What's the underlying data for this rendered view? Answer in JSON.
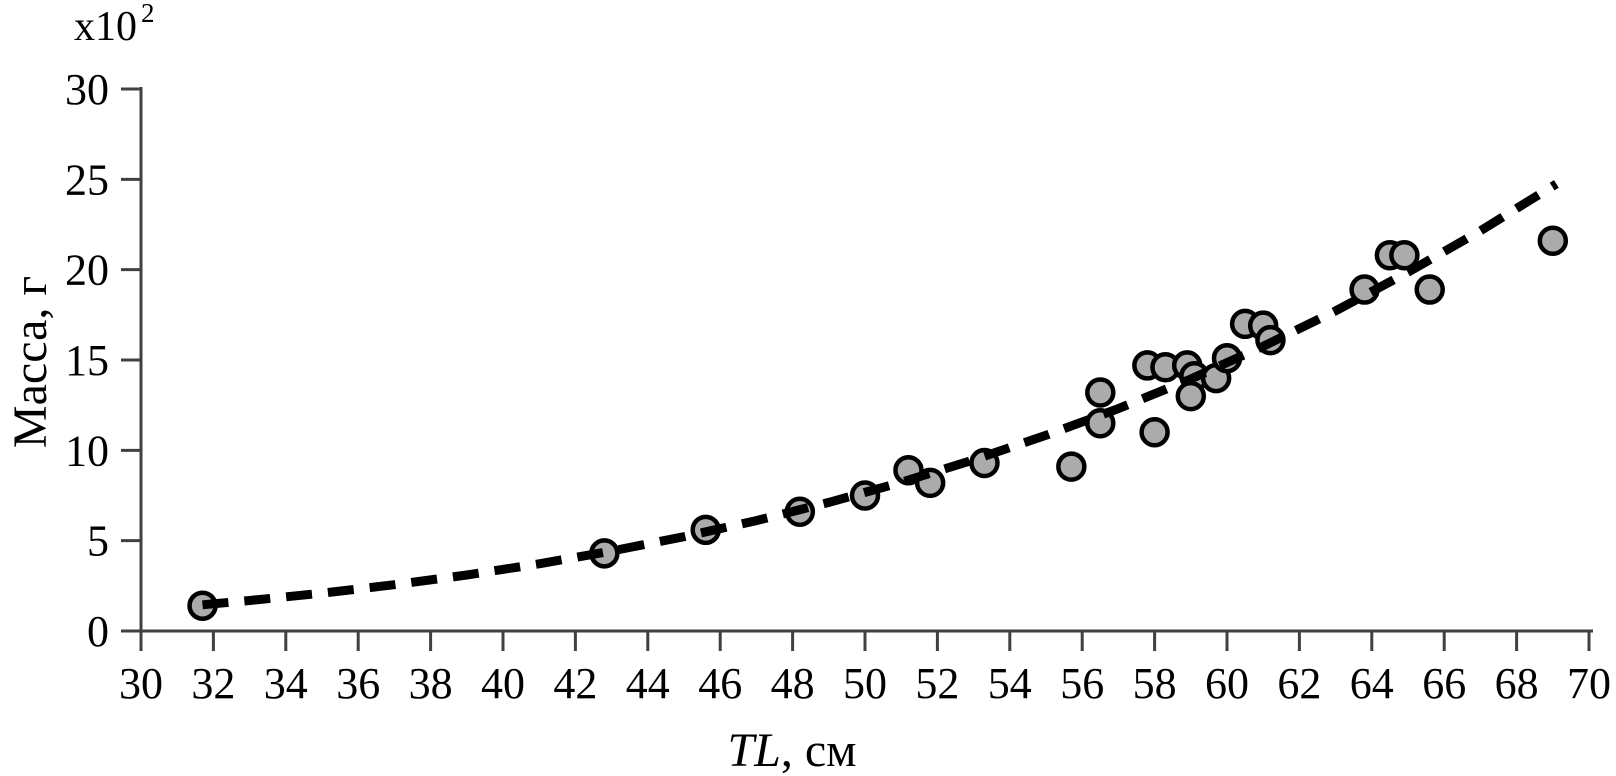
{
  "colors": {
    "background": "#ffffff",
    "axis": "#404040",
    "text": "#000000",
    "marker_fill": "#ababab",
    "marker_stroke": "#000000",
    "trend": "#000000"
  },
  "chart_data": {
    "type": "scatter",
    "title": "",
    "xlabel_italic": "TL",
    "xlabel_rest": ", см",
    "ylabel": "Масса, г",
    "y_scale_label": {
      "base": "x10",
      "exponent": "2"
    },
    "xlim": [
      30,
      70
    ],
    "ylim": [
      0,
      30
    ],
    "x_ticks": [
      30,
      32,
      34,
      36,
      38,
      40,
      42,
      44,
      46,
      48,
      50,
      52,
      54,
      56,
      58,
      60,
      62,
      64,
      66,
      68,
      70
    ],
    "y_ticks": [
      0,
      5,
      10,
      15,
      20,
      25,
      30
    ],
    "grid": false,
    "legend": "none",
    "series": [
      {
        "name": "mass-vs-length-observations",
        "marker": "circle",
        "marker_fill": "#ababab",
        "marker_stroke": "#000000",
        "points": [
          [
            31.7,
            1.4
          ],
          [
            42.8,
            4.3
          ],
          [
            45.6,
            5.6
          ],
          [
            48.2,
            6.6
          ],
          [
            50.0,
            7.5
          ],
          [
            51.2,
            8.9
          ],
          [
            51.8,
            8.2
          ],
          [
            53.3,
            9.3
          ],
          [
            55.7,
            9.1
          ],
          [
            56.5,
            13.2
          ],
          [
            56.5,
            11.5
          ],
          [
            57.8,
            14.7
          ],
          [
            58.0,
            11.0
          ],
          [
            58.3,
            14.6
          ],
          [
            58.9,
            14.7
          ],
          [
            59.1,
            14.1
          ],
          [
            59.0,
            13.0
          ],
          [
            59.7,
            14.0
          ],
          [
            60.0,
            15.1
          ],
          [
            60.5,
            17.0
          ],
          [
            61.0,
            16.9
          ],
          [
            61.2,
            16.1
          ],
          [
            63.8,
            18.9
          ],
          [
            64.5,
            20.8
          ],
          [
            64.9,
            20.8
          ],
          [
            65.6,
            18.9
          ],
          [
            69.0,
            21.6
          ]
        ]
      }
    ],
    "trendline": {
      "style": "dashed",
      "color": "#000000",
      "points": [
        [
          31.7,
          1.45
        ],
        [
          33,
          1.69
        ],
        [
          35,
          2.09
        ],
        [
          37,
          2.56
        ],
        [
          39,
          3.1
        ],
        [
          41,
          3.72
        ],
        [
          43,
          4.43
        ],
        [
          45,
          5.22
        ],
        [
          47,
          6.11
        ],
        [
          49,
          7.12
        ],
        [
          51,
          8.23
        ],
        [
          53,
          9.47
        ],
        [
          55,
          10.83
        ],
        [
          57,
          12.31
        ],
        [
          59,
          13.95
        ],
        [
          61,
          15.76
        ],
        [
          63,
          17.72
        ],
        [
          65,
          19.86
        ],
        [
          67,
          22.15
        ],
        [
          69.1,
          24.75
        ]
      ]
    }
  }
}
